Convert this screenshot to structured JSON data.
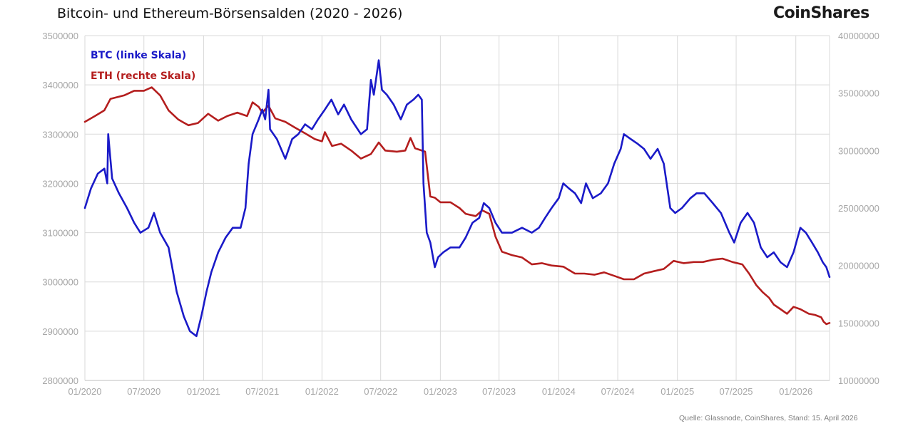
{
  "header": {
    "title": "Bitcoin- und Ethereum-Börsensalden (2020 - 2026)",
    "brand": "CoinShares"
  },
  "footer": {
    "source": "Quelle: Glassnode, CoinShares, Stand: 15. April 2026"
  },
  "colors": {
    "btc": "#1a1ac8",
    "eth": "#b41e1e",
    "grid": "#d9d9d9",
    "tick": "#a6a6a6"
  },
  "chart_data": {
    "type": "line",
    "title": "Bitcoin- und Ethereum-Börsensalden (2020 - 2026)",
    "x_range": [
      "2020-01",
      "2026-04-15"
    ],
    "x_ticks": [
      "01/2020",
      "07/2020",
      "01/2021",
      "07/2021",
      "01/2022",
      "07/2022",
      "01/2023",
      "07/2023",
      "01/2024",
      "07/2024",
      "01/2025",
      "07/2025",
      "01/2026"
    ],
    "y_left": {
      "range": [
        2800000,
        3500000
      ],
      "ticks": [
        "2800000",
        "2900000",
        "3000000",
        "3100000",
        "3200000",
        "3300000",
        "3400000",
        "3500000"
      ]
    },
    "y_right": {
      "range": [
        10000000,
        40000000
      ],
      "ticks": [
        "10000000",
        "15000000",
        "20000000",
        "25000000",
        "30000000",
        "35000000",
        "40000000"
      ]
    },
    "grid": true,
    "legend_position": "top-left",
    "series": [
      {
        "name": "BTC (linke Skala)",
        "axis": "left",
        "points": [
          [
            "2020-01-01",
            3150000
          ],
          [
            "2020-01-20",
            3190000
          ],
          [
            "2020-02-10",
            3220000
          ],
          [
            "2020-03-01",
            3230000
          ],
          [
            "2020-03-10",
            3200000
          ],
          [
            "2020-03-13",
            3300000
          ],
          [
            "2020-03-25",
            3210000
          ],
          [
            "2020-04-15",
            3180000
          ],
          [
            "2020-05-10",
            3150000
          ],
          [
            "2020-06-01",
            3120000
          ],
          [
            "2020-06-20",
            3100000
          ],
          [
            "2020-07-15",
            3110000
          ],
          [
            "2020-08-01",
            3140000
          ],
          [
            "2020-08-20",
            3100000
          ],
          [
            "2020-09-15",
            3070000
          ],
          [
            "2020-10-10",
            2980000
          ],
          [
            "2020-11-01",
            2930000
          ],
          [
            "2020-11-20",
            2900000
          ],
          [
            "2020-12-10",
            2890000
          ],
          [
            "2020-12-25",
            2930000
          ],
          [
            "2021-01-10",
            2980000
          ],
          [
            "2021-01-25",
            3020000
          ],
          [
            "2021-02-15",
            3060000
          ],
          [
            "2021-03-10",
            3090000
          ],
          [
            "2021-04-01",
            3110000
          ],
          [
            "2021-04-25",
            3110000
          ],
          [
            "2021-05-10",
            3150000
          ],
          [
            "2021-05-20",
            3240000
          ],
          [
            "2021-06-01",
            3300000
          ],
          [
            "2021-06-20",
            3330000
          ],
          [
            "2021-07-01",
            3350000
          ],
          [
            "2021-07-10",
            3330000
          ],
          [
            "2021-07-20",
            3390000
          ],
          [
            "2021-07-25",
            3310000
          ],
          [
            "2021-08-15",
            3290000
          ],
          [
            "2021-09-10",
            3250000
          ],
          [
            "2021-10-01",
            3290000
          ],
          [
            "2021-10-20",
            3300000
          ],
          [
            "2021-11-10",
            3320000
          ],
          [
            "2021-12-01",
            3310000
          ],
          [
            "2021-12-20",
            3330000
          ],
          [
            "2022-01-10",
            3350000
          ],
          [
            "2022-01-30",
            3370000
          ],
          [
            "2022-02-20",
            3340000
          ],
          [
            "2022-03-10",
            3360000
          ],
          [
            "2022-04-01",
            3330000
          ],
          [
            "2022-05-01",
            3300000
          ],
          [
            "2022-05-20",
            3310000
          ],
          [
            "2022-06-01",
            3410000
          ],
          [
            "2022-06-10",
            3380000
          ],
          [
            "2022-06-25",
            3450000
          ],
          [
            "2022-07-05",
            3390000
          ],
          [
            "2022-07-20",
            3380000
          ],
          [
            "2022-08-10",
            3360000
          ],
          [
            "2022-09-01",
            3330000
          ],
          [
            "2022-09-20",
            3360000
          ],
          [
            "2022-10-10",
            3370000
          ],
          [
            "2022-10-25",
            3380000
          ],
          [
            "2022-11-05",
            3370000
          ],
          [
            "2022-11-10",
            3200000
          ],
          [
            "2022-11-20",
            3100000
          ],
          [
            "2022-12-01",
            3080000
          ],
          [
            "2022-12-15",
            3030000
          ],
          [
            "2022-12-25",
            3050000
          ],
          [
            "2023-01-10",
            3060000
          ],
          [
            "2023-02-01",
            3070000
          ],
          [
            "2023-03-01",
            3070000
          ],
          [
            "2023-03-20",
            3090000
          ],
          [
            "2023-04-10",
            3120000
          ],
          [
            "2023-05-01",
            3130000
          ],
          [
            "2023-05-15",
            3160000
          ],
          [
            "2023-06-01",
            3150000
          ],
          [
            "2023-06-20",
            3120000
          ],
          [
            "2023-07-10",
            3100000
          ],
          [
            "2023-08-10",
            3100000
          ],
          [
            "2023-09-10",
            3110000
          ],
          [
            "2023-10-10",
            3100000
          ],
          [
            "2023-11-01",
            3110000
          ],
          [
            "2023-11-20",
            3130000
          ],
          [
            "2023-12-10",
            3150000
          ],
          [
            "2024-01-01",
            3170000
          ],
          [
            "2024-01-15",
            3200000
          ],
          [
            "2024-02-01",
            3190000
          ],
          [
            "2024-02-20",
            3180000
          ],
          [
            "2024-03-10",
            3160000
          ],
          [
            "2024-03-25",
            3200000
          ],
          [
            "2024-04-15",
            3170000
          ],
          [
            "2024-05-10",
            3180000
          ],
          [
            "2024-06-01",
            3200000
          ],
          [
            "2024-06-20",
            3240000
          ],
          [
            "2024-07-10",
            3270000
          ],
          [
            "2024-07-20",
            3300000
          ],
          [
            "2024-08-10",
            3290000
          ],
          [
            "2024-09-01",
            3280000
          ],
          [
            "2024-09-20",
            3270000
          ],
          [
            "2024-10-10",
            3250000
          ],
          [
            "2024-11-01",
            3270000
          ],
          [
            "2024-11-20",
            3240000
          ],
          [
            "2024-12-10",
            3150000
          ],
          [
            "2024-12-25",
            3140000
          ],
          [
            "2025-01-15",
            3150000
          ],
          [
            "2025-02-10",
            3170000
          ],
          [
            "2025-03-01",
            3180000
          ],
          [
            "2025-03-25",
            3180000
          ],
          [
            "2025-04-20",
            3160000
          ],
          [
            "2025-05-15",
            3140000
          ],
          [
            "2025-06-10",
            3100000
          ],
          [
            "2025-06-25",
            3080000
          ],
          [
            "2025-07-15",
            3120000
          ],
          [
            "2025-08-05",
            3140000
          ],
          [
            "2025-08-25",
            3120000
          ],
          [
            "2025-09-15",
            3070000
          ],
          [
            "2025-10-05",
            3050000
          ],
          [
            "2025-10-25",
            3060000
          ],
          [
            "2025-11-15",
            3040000
          ],
          [
            "2025-12-05",
            3030000
          ],
          [
            "2025-12-25",
            3060000
          ],
          [
            "2026-01-15",
            3110000
          ],
          [
            "2026-02-01",
            3100000
          ],
          [
            "2026-02-20",
            3080000
          ],
          [
            "2026-03-10",
            3060000
          ],
          [
            "2026-03-25",
            3040000
          ],
          [
            "2026-04-05",
            3030000
          ],
          [
            "2026-04-15",
            3010000
          ]
        ]
      },
      {
        "name": "ETH (rechte Skala)",
        "axis": "right",
        "points": [
          [
            "2020-01-01",
            32500000
          ],
          [
            "2020-02-01",
            33000000
          ],
          [
            "2020-03-01",
            33500000
          ],
          [
            "2020-03-20",
            34500000
          ],
          [
            "2020-05-01",
            34800000
          ],
          [
            "2020-06-01",
            35200000
          ],
          [
            "2020-07-01",
            35200000
          ],
          [
            "2020-07-25",
            35500000
          ],
          [
            "2020-08-20",
            34800000
          ],
          [
            "2020-09-15",
            33500000
          ],
          [
            "2020-10-15",
            32700000
          ],
          [
            "2020-11-15",
            32200000
          ],
          [
            "2020-12-15",
            32400000
          ],
          [
            "2021-01-15",
            33200000
          ],
          [
            "2021-02-15",
            32600000
          ],
          [
            "2021-03-15",
            33000000
          ],
          [
            "2021-04-15",
            33300000
          ],
          [
            "2021-05-15",
            33000000
          ],
          [
            "2021-06-01",
            34200000
          ],
          [
            "2021-06-20",
            33800000
          ],
          [
            "2021-07-01",
            33300000
          ],
          [
            "2021-07-20",
            33900000
          ],
          [
            "2021-08-10",
            32800000
          ],
          [
            "2021-09-10",
            32500000
          ],
          [
            "2021-10-10",
            32000000
          ],
          [
            "2021-11-10",
            31500000
          ],
          [
            "2021-12-10",
            31000000
          ],
          [
            "2022-01-01",
            30800000
          ],
          [
            "2022-01-10",
            31600000
          ],
          [
            "2022-02-01",
            30400000
          ],
          [
            "2022-03-01",
            30600000
          ],
          [
            "2022-04-01",
            30000000
          ],
          [
            "2022-05-01",
            29300000
          ],
          [
            "2022-06-01",
            29700000
          ],
          [
            "2022-06-25",
            30700000
          ],
          [
            "2022-07-15",
            30000000
          ],
          [
            "2022-08-20",
            29900000
          ],
          [
            "2022-09-15",
            30000000
          ],
          [
            "2022-10-01",
            31100000
          ],
          [
            "2022-10-15",
            30200000
          ],
          [
            "2022-11-15",
            29900000
          ],
          [
            "2022-12-01",
            26000000
          ],
          [
            "2022-12-15",
            25900000
          ],
          [
            "2023-01-01",
            25500000
          ],
          [
            "2023-02-01",
            25500000
          ],
          [
            "2023-03-01",
            25000000
          ],
          [
            "2023-03-20",
            24500000
          ],
          [
            "2023-04-20",
            24300000
          ],
          [
            "2023-05-10",
            24800000
          ],
          [
            "2023-06-01",
            24500000
          ],
          [
            "2023-06-20",
            22500000
          ],
          [
            "2023-07-10",
            21200000
          ],
          [
            "2023-08-10",
            20900000
          ],
          [
            "2023-09-10",
            20700000
          ],
          [
            "2023-10-10",
            20100000
          ],
          [
            "2023-11-10",
            20200000
          ],
          [
            "2023-12-10",
            20000000
          ],
          [
            "2024-01-15",
            19900000
          ],
          [
            "2024-02-20",
            19300000
          ],
          [
            "2024-03-20",
            19300000
          ],
          [
            "2024-04-20",
            19200000
          ],
          [
            "2024-05-20",
            19400000
          ],
          [
            "2024-06-20",
            19100000
          ],
          [
            "2024-07-20",
            18800000
          ],
          [
            "2024-08-20",
            18800000
          ],
          [
            "2024-09-20",
            19300000
          ],
          [
            "2024-10-20",
            19500000
          ],
          [
            "2024-11-20",
            19700000
          ],
          [
            "2024-12-20",
            20400000
          ],
          [
            "2025-01-20",
            20200000
          ],
          [
            "2025-02-20",
            20300000
          ],
          [
            "2025-03-20",
            20300000
          ],
          [
            "2025-04-20",
            20500000
          ],
          [
            "2025-05-20",
            20600000
          ],
          [
            "2025-06-20",
            20300000
          ],
          [
            "2025-07-20",
            20100000
          ],
          [
            "2025-08-10",
            19300000
          ],
          [
            "2025-09-01",
            18300000
          ],
          [
            "2025-09-20",
            17700000
          ],
          [
            "2025-10-10",
            17200000
          ],
          [
            "2025-10-25",
            16600000
          ],
          [
            "2025-11-15",
            16200000
          ],
          [
            "2025-12-05",
            15800000
          ],
          [
            "2025-12-25",
            16400000
          ],
          [
            "2026-01-15",
            16200000
          ],
          [
            "2026-02-10",
            15800000
          ],
          [
            "2026-03-01",
            15700000
          ],
          [
            "2026-03-20",
            15500000
          ],
          [
            "2026-03-28",
            15100000
          ],
          [
            "2026-04-05",
            14900000
          ],
          [
            "2026-04-15",
            15000000
          ]
        ]
      }
    ]
  }
}
